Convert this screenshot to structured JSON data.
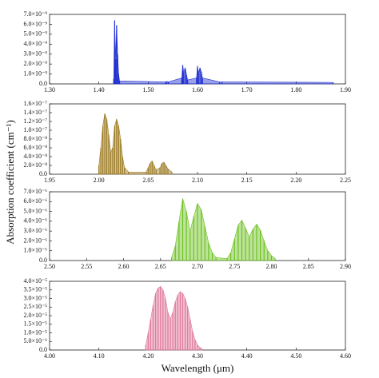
{
  "ylabel": "Absorption coefficient (cm⁻¹)",
  "chart_data": [
    {
      "type": "spectrum",
      "color": "#1f2fd0",
      "x": [
        1.43,
        1.432,
        1.434,
        1.436,
        1.438,
        1.44,
        1.442,
        1.535,
        1.538,
        1.541,
        1.568,
        1.57,
        1.572,
        1.575,
        1.578,
        1.58,
        1.598,
        1.6,
        1.602,
        1.605,
        1.608,
        1.61,
        1.645,
        1.65,
        1.875
      ],
      "values": [
        5e-10,
        6.4e-09,
        2.5e-09,
        5.9e-09,
        3e-09,
        1e-09,
        3e-10,
        2e-10,
        2.5e-10,
        2e-10,
        6e-10,
        1.9e-09,
        1.2e-09,
        1.6e-09,
        9e-10,
        4e-10,
        6e-10,
        1.8e-09,
        1.1e-09,
        1.6e-09,
        1.2e-09,
        6e-10,
        2e-10,
        2e-10,
        1.5e-10
      ],
      "xlim": [
        1.3,
        1.9
      ],
      "xticks": [
        {
          "value": 1.3,
          "label": "1.30"
        },
        {
          "value": 1.4,
          "label": "1.40"
        },
        {
          "value": 1.5,
          "label": "1.50"
        },
        {
          "value": 1.6,
          "label": "1.60"
        },
        {
          "value": 1.7,
          "label": "1.70"
        },
        {
          "value": 1.8,
          "label": "1.80"
        },
        {
          "value": 1.9,
          "label": "1.90"
        }
      ],
      "ylim": [
        0,
        7e-09
      ],
      "yticks": [
        {
          "value": 0,
          "label": "0.0"
        },
        {
          "value": 1e-09,
          "label": "1.0×10⁻⁹"
        },
        {
          "value": 2e-09,
          "label": "2.0×10⁻⁹"
        },
        {
          "value": 3e-09,
          "label": "3.0×10⁻⁹"
        },
        {
          "value": 4e-09,
          "label": "4.0×10⁻⁹"
        },
        {
          "value": 5e-09,
          "label": "5.0×10⁻⁹"
        },
        {
          "value": 6e-09,
          "label": "6.0×10⁻⁹"
        },
        {
          "value": 7e-09,
          "label": "7.0×10⁻⁹"
        }
      ]
    },
    {
      "type": "spectrum",
      "color": "#9c7a22",
      "x": [
        2.0,
        2.002,
        2.004,
        2.006,
        2.008,
        2.01,
        2.012,
        2.014,
        2.016,
        2.018,
        2.02,
        2.022,
        2.024,
        2.026,
        2.03,
        2.048,
        2.05,
        2.052,
        2.054,
        2.056,
        2.058,
        2.062,
        2.064,
        2.066,
        2.068,
        2.07,
        2.074
      ],
      "values": [
        2e-08,
        6e-08,
        1.1e-07,
        1.38e-07,
        1.25e-07,
        9e-08,
        5e-08,
        6e-08,
        1.1e-07,
        1.25e-07,
        1.1e-07,
        8e-08,
        4e-08,
        1.5e-08,
        5e-09,
        5e-09,
        1.5e-08,
        2.5e-08,
        3e-08,
        2e-08,
        1e-08,
        1.5e-08,
        2.5e-08,
        2.7e-08,
        2e-08,
        1.2e-08,
        5e-09
      ],
      "xlim": [
        1.95,
        2.25
      ],
      "xticks": [
        {
          "value": 1.95,
          "label": "1.95"
        },
        {
          "value": 2.0,
          "label": "2.00"
        },
        {
          "value": 2.05,
          "label": "2.05"
        },
        {
          "value": 2.1,
          "label": "2.10"
        },
        {
          "value": 2.15,
          "label": "2.15"
        },
        {
          "value": 2.2,
          "label": "2.20"
        },
        {
          "value": 2.25,
          "label": "2.25"
        }
      ],
      "ylim": [
        0,
        1.6e-07
      ],
      "yticks": [
        {
          "value": 0,
          "label": "0.0"
        },
        {
          "value": 2e-08,
          "label": "2.0×10⁻⁸"
        },
        {
          "value": 4e-08,
          "label": "4.0×10⁻⁸"
        },
        {
          "value": 6e-08,
          "label": "6.0×10⁻⁸"
        },
        {
          "value": 8e-08,
          "label": "8.0×10⁻⁸"
        },
        {
          "value": 1e-07,
          "label": "1.0×10⁻⁷"
        },
        {
          "value": 1.2e-07,
          "label": "1.2×10⁻⁷"
        },
        {
          "value": 1.4e-07,
          "label": "1.4×10⁻⁷"
        },
        {
          "value": 1.6e-07,
          "label": "1.6×10⁻⁷"
        }
      ]
    },
    {
      "type": "spectrum",
      "color": "#6cc020",
      "x": [
        2.665,
        2.67,
        2.675,
        2.68,
        2.685,
        2.69,
        2.695,
        2.7,
        2.705,
        2.71,
        2.715,
        2.72,
        2.725,
        2.74,
        2.745,
        2.75,
        2.755,
        2.76,
        2.765,
        2.77,
        2.775,
        2.78,
        2.785,
        2.79,
        2.795,
        2.8,
        2.805
      ],
      "values": [
        3e-07,
        1.5e-06,
        4e-06,
        6.3e-06,
        5e-06,
        3e-06,
        4.5e-06,
        5.8e-06,
        5.2e-06,
        3.5e-06,
        1.8e-06,
        8e-07,
        3e-07,
        2e-07,
        8e-07,
        2.2e-06,
        3.6e-06,
        4.1e-06,
        3.3e-06,
        2.4e-06,
        3.2e-06,
        3.7e-06,
        3.1e-06,
        2e-06,
        1e-06,
        5e-07,
        2e-07
      ],
      "xlim": [
        2.5,
        2.9
      ],
      "xticks": [
        {
          "value": 2.5,
          "label": "2.50"
        },
        {
          "value": 2.55,
          "label": "2.55"
        },
        {
          "value": 2.6,
          "label": "2.60"
        },
        {
          "value": 2.65,
          "label": "2.65"
        },
        {
          "value": 2.7,
          "label": "2.70"
        },
        {
          "value": 2.75,
          "label": "2.75"
        },
        {
          "value": 2.8,
          "label": "2.80"
        },
        {
          "value": 2.85,
          "label": "2.85"
        },
        {
          "value": 2.9,
          "label": "2.90"
        }
      ],
      "ylim": [
        0,
        7e-06
      ],
      "yticks": [
        {
          "value": 0,
          "label": "0.0"
        },
        {
          "value": 1e-06,
          "label": "1.0×10⁻⁶"
        },
        {
          "value": 2e-06,
          "label": "2.0×10⁻⁶"
        },
        {
          "value": 3e-06,
          "label": "3.0×10⁻⁶"
        },
        {
          "value": 4e-06,
          "label": "4.0×10⁻⁶"
        },
        {
          "value": 5e-06,
          "label": "5.0×10⁻⁶"
        },
        {
          "value": 6e-06,
          "label": "6.0×10⁻⁶"
        },
        {
          "value": 7e-06,
          "label": "7.0×10⁻⁶"
        }
      ]
    },
    {
      "type": "spectrum",
      "color": "#e0789c",
      "xlabel": "Wavelength (μm)",
      "x": [
        4.195,
        4.2,
        4.205,
        4.21,
        4.215,
        4.22,
        4.225,
        4.23,
        4.235,
        4.24,
        4.245,
        4.25,
        4.255,
        4.26,
        4.265,
        4.27,
        4.275,
        4.28,
        4.285,
        4.29,
        4.295,
        4.3,
        4.305,
        4.31
      ],
      "values": [
        3e-06,
        1e-05,
        1.8e-05,
        2.6e-05,
        3.3e-05,
        3.6e-05,
        3.7e-05,
        3.5e-05,
        3e-05,
        2.2e-05,
        1.8e-05,
        2.2e-05,
        2.8e-05,
        3.2e-05,
        3.4e-05,
        3.3e-05,
        3e-05,
        2.5e-05,
        1.8e-05,
        1.1e-05,
        6e-06,
        3e-06,
        1.5e-06,
        5e-07
      ],
      "xlim": [
        4.0,
        4.6
      ],
      "xticks": [
        {
          "value": 4.0,
          "label": "4.00"
        },
        {
          "value": 4.1,
          "label": "4.10"
        },
        {
          "value": 4.2,
          "label": "4.20"
        },
        {
          "value": 4.3,
          "label": "4.30"
        },
        {
          "value": 4.4,
          "label": "4.40"
        },
        {
          "value": 4.5,
          "label": "4.50"
        },
        {
          "value": 4.6,
          "label": "4.60"
        }
      ],
      "ylim": [
        0,
        4e-05
      ],
      "yticks": [
        {
          "value": 0,
          "label": "0.0"
        },
        {
          "value": 5e-06,
          "label": "5.0×10⁻⁶"
        },
        {
          "value": 1e-05,
          "label": "1.0×10⁻⁵"
        },
        {
          "value": 1.5e-05,
          "label": "1.5×10⁻⁵"
        },
        {
          "value": 2e-05,
          "label": "2.0×10⁻⁵"
        },
        {
          "value": 2.5e-05,
          "label": "2.5×10⁻⁵"
        },
        {
          "value": 3e-05,
          "label": "3.0×10⁻⁵"
        },
        {
          "value": 3.5e-05,
          "label": "3.5×10⁻⁵"
        },
        {
          "value": 4e-05,
          "label": "4.0×10⁻⁵"
        }
      ]
    }
  ]
}
